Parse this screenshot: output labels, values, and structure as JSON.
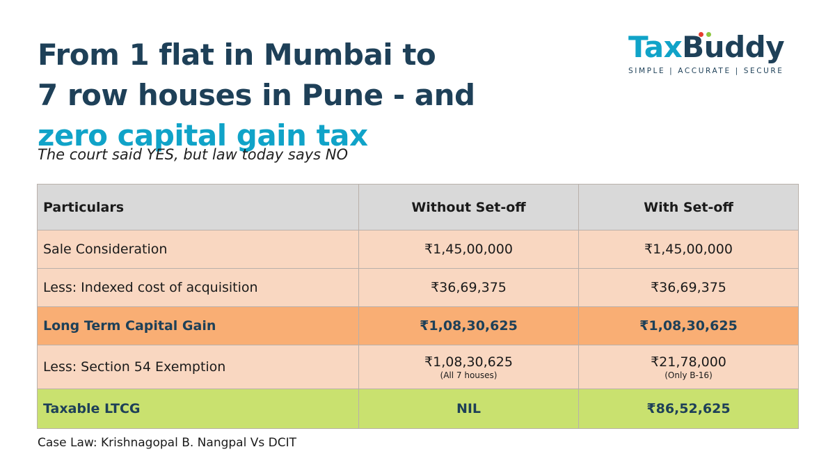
{
  "headline": {
    "line1": "From 1 flat in Mumbai to",
    "line2": "7 row houses in Pune - and",
    "line3": "zero capital gain tax"
  },
  "subtitle": "The court said YES, but law today says NO",
  "logo": {
    "tax": "Tax",
    "buddy": "Buddy",
    "tagline": "SIMPLE | ACCURATE | SECURE",
    "dot_colors": [
      "#e63c2f",
      "#8cc63f"
    ]
  },
  "colors": {
    "navy": "#1e4058",
    "accent": "#10a3c8",
    "header_row": "#d9d9d9",
    "body_row": "#f9d7c1",
    "highlight_row": "#f9ae74",
    "total_row": "#c9e16f"
  },
  "table": {
    "headers": [
      "Particulars",
      "Without Set-off",
      "With Set-off"
    ],
    "rows": [
      {
        "label": "Sale Consideration",
        "without": "₹1,45,00,000",
        "with": "₹1,45,00,000"
      },
      {
        "label": "Less: Indexed cost of acquisition",
        "without": "₹36,69,375",
        "with": "₹36,69,375"
      },
      {
        "label": "Long Term Capital Gain",
        "without": "₹1,08,30,625",
        "with": "₹1,08,30,625"
      },
      {
        "label": "Less: Section 54 Exemption",
        "without": "₹1,08,30,625",
        "without_note": "(All 7 houses)",
        "with": "₹21,78,000",
        "with_note": "(Only B-16)"
      },
      {
        "label": "Taxable LTCG",
        "without": "NIL",
        "with": "₹86,52,625"
      }
    ]
  },
  "footer": "Case Law: Krishnagopal B. Nangpal Vs DCIT"
}
